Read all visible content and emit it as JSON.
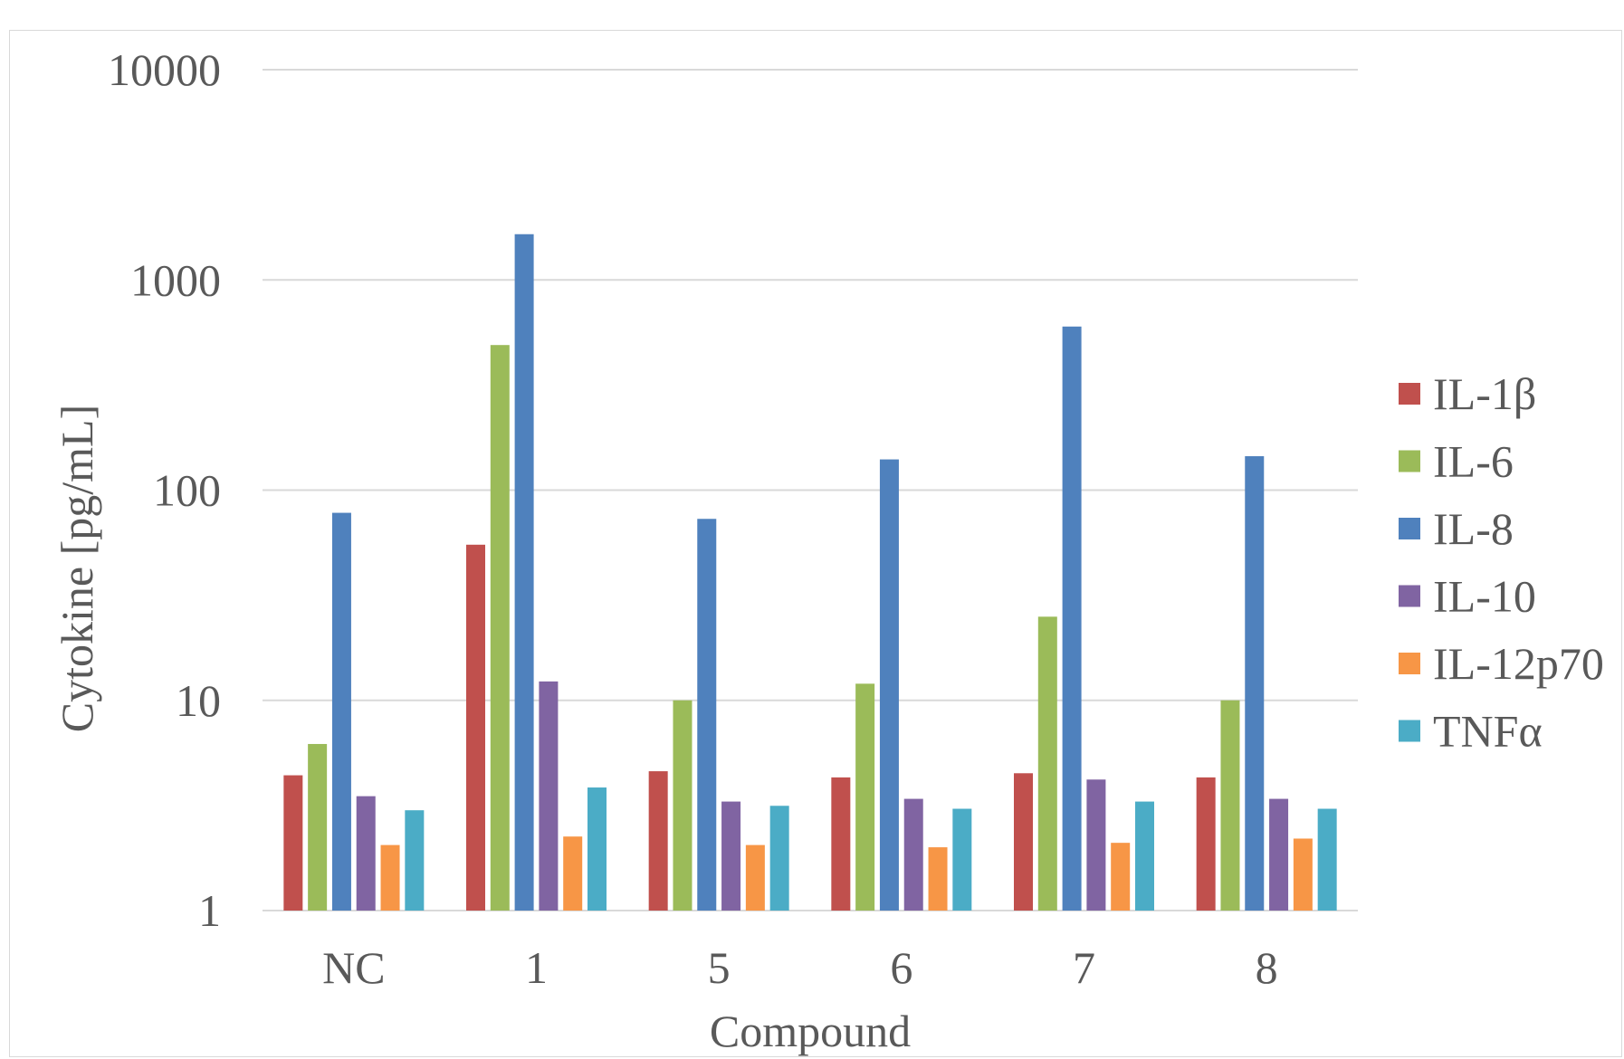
{
  "chart_data": {
    "type": "bar",
    "xlabel": "Compound",
    "ylabel": "Cytokine [pg/mL]",
    "yscale": "log",
    "ylim": [
      1,
      10000
    ],
    "yticks": [
      "1",
      "10",
      "100",
      "1000",
      "10000"
    ],
    "grid": true,
    "legend_position": "right",
    "categories": [
      "NC",
      "1",
      "5",
      "6",
      "7",
      "8"
    ],
    "series": [
      {
        "name": "IL-1β",
        "color": "#C0504D",
        "values": [
          4.4,
          55,
          4.6,
          4.3,
          4.5,
          4.3
        ]
      },
      {
        "name": "IL-6",
        "color": "#9BBB59",
        "values": [
          6.2,
          490,
          10,
          12,
          25,
          10
        ]
      },
      {
        "name": "IL-8",
        "color": "#4F81BD",
        "values": [
          78,
          1650,
          73,
          140,
          600,
          145
        ]
      },
      {
        "name": "IL-10",
        "color": "#8064A2",
        "values": [
          3.5,
          12.3,
          3.3,
          3.4,
          4.2,
          3.4
        ]
      },
      {
        "name": "IL-12p70",
        "color": "#F79646",
        "values": [
          2.05,
          2.25,
          2.05,
          2.0,
          2.1,
          2.2
        ]
      },
      {
        "name": "TNFα",
        "color": "#4BACC6",
        "values": [
          3.0,
          3.85,
          3.15,
          3.05,
          3.3,
          3.05
        ]
      }
    ]
  }
}
